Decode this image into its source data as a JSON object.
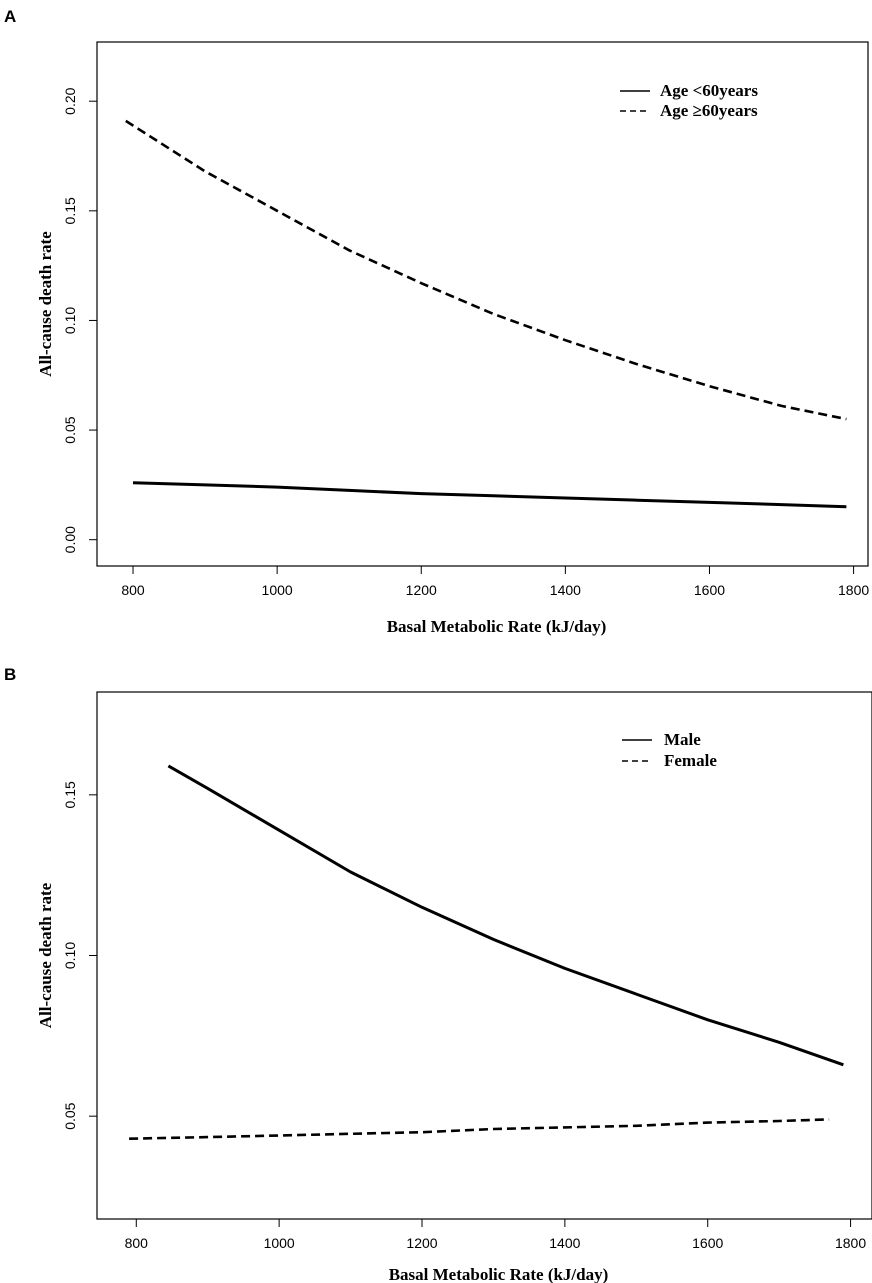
{
  "chart_data": [
    {
      "panel_label": "A",
      "type": "line",
      "title": "",
      "xlabel": "Basal Metabolic Rate (kJ/day)",
      "ylabel": "All-cause death rate",
      "xlim": [
        750,
        1820
      ],
      "ylim": [
        -0.012,
        0.227
      ],
      "xticks": [
        800,
        1000,
        1200,
        1400,
        1600,
        1800
      ],
      "yticks": [
        0.0,
        0.05,
        0.1,
        0.15,
        0.2
      ],
      "ytick_labels": [
        "0.00",
        "0.05",
        "0.10",
        "0.15",
        "0.20"
      ],
      "grid": false,
      "legend_position": "top-right",
      "series": [
        {
          "name": "Age <60years",
          "style": "solid",
          "x": [
            800,
            900,
            1000,
            1100,
            1200,
            1300,
            1400,
            1500,
            1600,
            1700,
            1790
          ],
          "y": [
            0.026,
            0.025,
            0.024,
            0.0225,
            0.021,
            0.02,
            0.019,
            0.018,
            0.017,
            0.016,
            0.015
          ]
        },
        {
          "name": "Age ≥60years",
          "style": "dashed",
          "x": [
            790,
            900,
            1000,
            1100,
            1200,
            1300,
            1400,
            1500,
            1600,
            1700,
            1790
          ],
          "y": [
            0.191,
            0.168,
            0.15,
            0.132,
            0.117,
            0.103,
            0.091,
            0.08,
            0.07,
            0.061,
            0.055
          ]
        }
      ]
    },
    {
      "panel_label": "B",
      "type": "line",
      "title": "",
      "xlabel": "Basal Metabolic Rate (kJ/day)",
      "ylabel": "All-cause death rate",
      "xlim": [
        745,
        1830
      ],
      "ylim": [
        0.018,
        0.182
      ],
      "xticks": [
        800,
        1000,
        1200,
        1400,
        1600,
        1800
      ],
      "yticks": [
        0.05,
        0.1,
        0.15
      ],
      "ytick_labels": [
        "0.05",
        "0.10",
        "0.15"
      ],
      "grid": false,
      "legend_position": "top-right",
      "series": [
        {
          "name": "Male",
          "style": "solid",
          "x": [
            845,
            900,
            1000,
            1100,
            1200,
            1300,
            1400,
            1500,
            1600,
            1700,
            1790
          ],
          "y": [
            0.159,
            0.152,
            0.139,
            0.126,
            0.115,
            0.105,
            0.096,
            0.088,
            0.08,
            0.073,
            0.066
          ]
        },
        {
          "name": "Female",
          "style": "dashed",
          "x": [
            790,
            900,
            1000,
            1100,
            1200,
            1300,
            1400,
            1500,
            1600,
            1700,
            1770
          ],
          "y": [
            0.043,
            0.0435,
            0.044,
            0.0445,
            0.045,
            0.046,
            0.0465,
            0.047,
            0.048,
            0.0485,
            0.049
          ]
        }
      ]
    }
  ]
}
